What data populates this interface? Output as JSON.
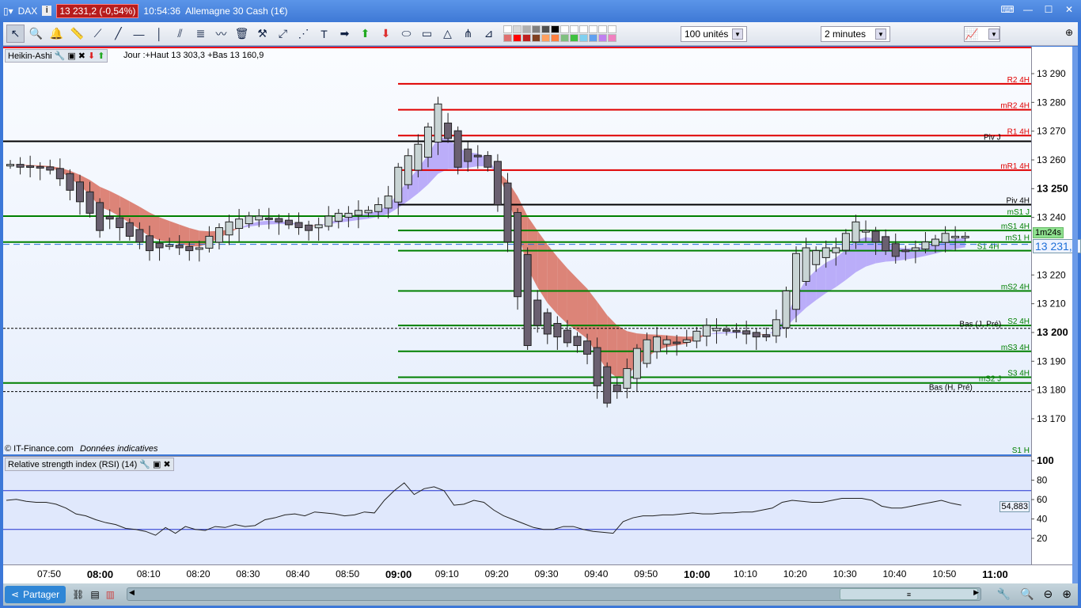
{
  "titlebar": {
    "symbol": "DAX",
    "price": "13 231,2 (-0,54%)",
    "time": "10:54:36",
    "instrument": "Allemagne 30 Cash (1€)"
  },
  "toolbar": {
    "icons": [
      "pointer-icon",
      "zoom-icon",
      "alert-bell-icon",
      "ruler-icon",
      "segment-icon",
      "line-icon",
      "horizontal-line-icon",
      "vertical-line-icon",
      "channel-icon",
      "fibonacci-icon",
      "trend-icon",
      "trash-icon",
      "tools-icon",
      "point-icon",
      "parallel-icon",
      "text-icon",
      "arrow-right-icon",
      "arrow-up-icon",
      "arrow-down-icon",
      "ellipse-icon",
      "rectangle-icon",
      "triangle-icon",
      "pitchfork-icon",
      "gann-icon"
    ],
    "colors": [
      "#ffffff",
      "#d8d8d8",
      "#b0b0b0",
      "#808080",
      "#505050",
      "#000000",
      "#ffffff",
      "#ffffff",
      "#ffffff",
      "#ffffff",
      "#ffffff",
      "#ffffff",
      "#e07070",
      "#ff0000",
      "#c02020",
      "#804020",
      "#ffa060",
      "#ff8040",
      "#80c080",
      "#40c040",
      "#80d0f0",
      "#60a0f0",
      "#c080f0",
      "#f080c0"
    ],
    "quantity": "100 unités",
    "interval": "2 minutes"
  },
  "chart": {
    "indicator_name": "Heikin-Ashi",
    "info": "Jour :+Haut 13 303,3 +Bas 13 160,9",
    "copyright": "© IT-Finance.com",
    "disclaimer": "Données indicatives",
    "countdown": "1m24s",
    "current_price": "13 231,2",
    "current_price_value": 13231.2,
    "colors": {
      "up": "#c8d4d4",
      "down": "#6a6070",
      "bear_cloud": "#d87060",
      "bull_cloud": "#b0a0f8",
      "accent": "#1e6fd8"
    },
    "levels": [
      {
        "label": "R2 4H",
        "price": 13287,
        "color": "#e00000",
        "style": "solid"
      },
      {
        "label": "mR2 4H",
        "price": 13278,
        "color": "#e00000",
        "style": "solid"
      },
      {
        "label": "R1 4H",
        "price": 13269,
        "color": "#e00000",
        "style": "solid"
      },
      {
        "label": "Piv J",
        "price": 13267,
        "color": "#000000",
        "style": "solid"
      },
      {
        "label": "mR1 4H",
        "price": 13257,
        "color": "#e00000",
        "style": "solid"
      },
      {
        "label": "Piv 4H",
        "price": 13245,
        "color": "#000000",
        "style": "solid"
      },
      {
        "label": "mS1 J",
        "price": 13241,
        "color": "#008000",
        "style": "solid"
      },
      {
        "label": "mS1 4H",
        "price": 13236,
        "color": "#008000",
        "style": "solid"
      },
      {
        "label": "mS1 H",
        "price": 13232,
        "color": "#008000",
        "style": "solid"
      },
      {
        "label": "S1 4H",
        "price": 13229,
        "color": "#008000",
        "style": "solid"
      },
      {
        "label": "mS2 4H",
        "price": 13215,
        "color": "#008000",
        "style": "solid"
      },
      {
        "label": "S2 4H",
        "price": 13203,
        "color": "#008000",
        "style": "solid"
      },
      {
        "label": "Bas (J, Pré)",
        "price": 13202,
        "color": "#000000",
        "style": "dashed"
      },
      {
        "label": "mS3 4H",
        "price": 13194,
        "color": "#008000",
        "style": "solid"
      },
      {
        "label": "S3 4H",
        "price": 13185,
        "color": "#008000",
        "style": "solid"
      },
      {
        "label": "mS2 J",
        "price": 13183,
        "color": "#008000",
        "style": "solid"
      },
      {
        "label": "Bas (H, Pré)",
        "price": 13180,
        "color": "#000000",
        "style": "dashed"
      },
      {
        "label": "S1 H",
        "price": 13158,
        "color": "#008000",
        "style": "none"
      }
    ]
  },
  "rsi": {
    "title": "Relative strength index (RSI) (14)",
    "value": "54,883",
    "levels": [
      70,
      30
    ],
    "ticks": [
      "100",
      "80",
      "60",
      "40",
      "20"
    ]
  },
  "chart_data": {
    "type": "candlestick",
    "x_start": "07:42",
    "interval_minutes": 2,
    "x_ticks": [
      "07:50",
      "08:00",
      "08:10",
      "08:20",
      "08:30",
      "08:40",
      "08:50",
      "09:00",
      "09:10",
      "09:20",
      "09:30",
      "09:40",
      "09:50",
      "10:00",
      "10:10",
      "10:20",
      "10:30",
      "10:40",
      "10:50",
      "11:00"
    ],
    "y_ticks": [
      13290,
      13280,
      13270,
      13260,
      13250,
      13240,
      13220,
      13210,
      13200,
      13190,
      13180,
      13170
    ],
    "ylim": [
      13155,
      13305
    ],
    "close": [
      13259,
      13258,
      13258,
      13258,
      13257,
      13254,
      13250,
      13246,
      13242,
      13236,
      13240,
      13237,
      13234,
      13232,
      13229,
      13230,
      13231,
      13230,
      13229,
      13230,
      13234,
      13237,
      13239,
      13240,
      13241,
      13241,
      13240,
      13239,
      13238,
      13237,
      13236,
      13238,
      13241,
      13242,
      13242,
      13243,
      13243,
      13245,
      13248,
      13258,
      13262,
      13266,
      13272,
      13280,
      13268,
      13258,
      13260,
      13262,
      13258,
      13245,
      13232,
      13213,
      13196,
      13203,
      13200,
      13199,
      13197,
      13196,
      13193,
      13182,
      13176,
      13180,
      13188,
      13195,
      13198,
      13199,
      13198,
      13197,
      13198,
      13201,
      13203,
      13202,
      13201,
      13201,
      13200,
      13199,
      13199,
      13205,
      13215,
      13228,
      13230,
      13229,
      13230,
      13230,
      13235,
      13239,
      13236,
      13232,
      13229,
      13227,
      13229,
      13230,
      13232,
      13233,
      13235,
      13234,
      13234
    ],
    "rsi": [
      60,
      61,
      59,
      58,
      58,
      56,
      52,
      46,
      44,
      40,
      37,
      35,
      31,
      30,
      28,
      24,
      32,
      26,
      33,
      30,
      29,
      33,
      32,
      35,
      33,
      34,
      40,
      42,
      45,
      46,
      44,
      48,
      47,
      46,
      44,
      45,
      48,
      47,
      60,
      70,
      78,
      66,
      72,
      74,
      70,
      55,
      56,
      60,
      58,
      50,
      44,
      40,
      36,
      32,
      30,
      30,
      33,
      33,
      30,
      28,
      27,
      26,
      38,
      42,
      44,
      44,
      45,
      45,
      46,
      47,
      46,
      46,
      47,
      47,
      48,
      48,
      50,
      52,
      58,
      60,
      59,
      58,
      58,
      60,
      62,
      62,
      62,
      60,
      54,
      52,
      52,
      54,
      56,
      58,
      60,
      57,
      55
    ]
  },
  "xaxis": {
    "labels": [
      "07:50",
      "08:00",
      "08:10",
      "08:20",
      "08:30",
      "08:40",
      "08:50",
      "09:00",
      "09:10",
      "09:20",
      "09:30",
      "09:40",
      "09:50",
      "10:00",
      "10:10",
      "10:20",
      "10:30",
      "10:40",
      "10:50",
      "11:00"
    ],
    "bold": [
      "08:00",
      "09:00",
      "10:00",
      "11:00"
    ]
  },
  "bottombar": {
    "share": "Partager"
  }
}
